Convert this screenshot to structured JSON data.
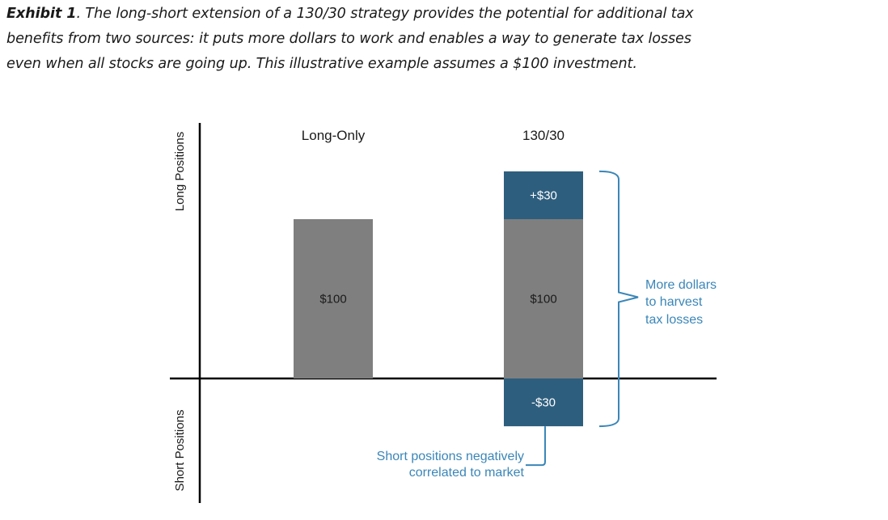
{
  "caption": {
    "label": "Exhibit 1",
    "line1_rest": ". The long-short extension of a 130/30 strategy provides the potential for additional tax",
    "line2": "benefits from two sources: it puts more dollars to work and enables a way to generate tax losses",
    "line3": "even when all stocks are going up.  This illustrative example assumes a $100 investment."
  },
  "chart_data": {
    "type": "bar",
    "stacked": true,
    "categories": [
      "Long-Only",
      "130/30"
    ],
    "series": [
      {
        "name": "Base long",
        "values": [
          100,
          100
        ],
        "labels": [
          "$100",
          "$100"
        ],
        "color": "#7f7f7f"
      },
      {
        "name": "Extra long",
        "values": [
          0,
          30
        ],
        "labels": [
          "",
          "+$30"
        ],
        "color": "#2e5e7e"
      },
      {
        "name": "Short",
        "values": [
          0,
          -30
        ],
        "labels": [
          "",
          "-$30"
        ],
        "color": "#2e5e7e"
      }
    ],
    "ylim": [
      -75,
      160
    ],
    "y_axis_labels": {
      "top": "Long Positions",
      "bottom": "Short Positions"
    },
    "annotations": {
      "bracket_lines": [
        "More dollars",
        "to harvest",
        "tax losses"
      ],
      "short_note_lines": [
        "Short positions negatively",
        "correlated to market"
      ]
    },
    "colors": {
      "annotation": "#3a86b8",
      "axis": "#000000",
      "text": "#1a1a1a"
    }
  }
}
